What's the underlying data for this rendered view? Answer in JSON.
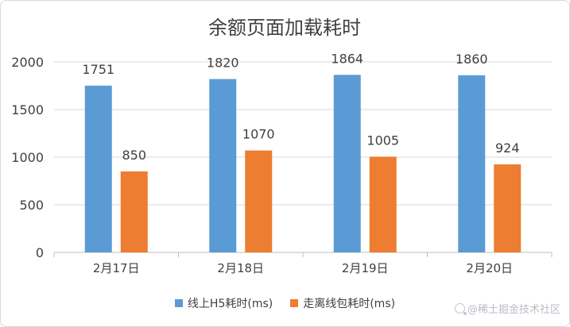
{
  "chart_data": {
    "type": "bar",
    "title": "余额页面加载耗时",
    "categories": [
      "2月17日",
      "2月18日",
      "2月19日",
      "2月20日"
    ],
    "series": [
      {
        "name": "线上H5耗时(ms)",
        "values": [
          1751,
          1820,
          1864,
          1860
        ],
        "color": "#5b9bd5"
      },
      {
        "name": "走离线包耗时(ms)",
        "values": [
          850,
          1070,
          1005,
          924
        ],
        "color": "#ed7d31"
      }
    ],
    "ylim": [
      0,
      2000
    ],
    "yticks": [
      0,
      500,
      1000,
      1500,
      2000
    ],
    "grid": true,
    "legend_position": "bottom"
  },
  "watermark": "@稀土掘金技术社区"
}
